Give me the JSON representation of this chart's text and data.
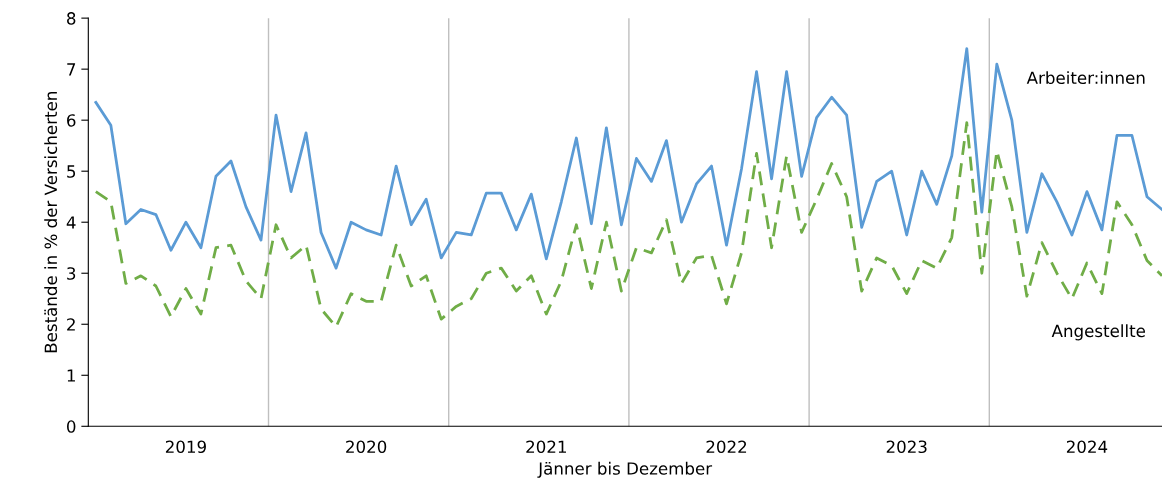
{
  "chart_data": {
    "type": "line",
    "xlabel": "Jänner bis Dezember",
    "ylabel": "Bestände in % der Versicherten",
    "categories": [
      null,
      null,
      null,
      null,
      null,
      null,
      "2019",
      null,
      null,
      null,
      null,
      null,
      null,
      null,
      null,
      null,
      null,
      null,
      "2020",
      null,
      null,
      null,
      null,
      null,
      null,
      null,
      null,
      null,
      null,
      null,
      "2021",
      null,
      null,
      null,
      null,
      null,
      null,
      null,
      null,
      null,
      null,
      null,
      "2022",
      null,
      null,
      null,
      null,
      null,
      null,
      null,
      null,
      null,
      null,
      null,
      "2023",
      null,
      null,
      null,
      null,
      null,
      null,
      null,
      null,
      null,
      null,
      null,
      "2024",
      null,
      null,
      null,
      null,
      null
    ],
    "ylim": [
      0,
      8
    ],
    "yticks": [
      0,
      1,
      2,
      3,
      4,
      5,
      6,
      7,
      8
    ],
    "grid": false,
    "legend": false,
    "series": [
      {
        "name": "Arbeiter:innen",
        "color": "#5b9bd5",
        "line_style": "solid",
        "values": [
          6.35,
          5.9,
          3.97,
          4.25,
          4.15,
          3.45,
          4.0,
          3.5,
          4.9,
          5.2,
          4.3,
          3.65,
          6.1,
          4.6,
          5.75,
          3.8,
          3.1,
          4.0,
          3.85,
          3.75,
          5.1,
          3.95,
          4.45,
          3.3,
          3.8,
          3.75,
          4.57,
          4.57,
          3.85,
          4.55,
          3.28,
          4.4,
          5.65,
          3.97,
          5.85,
          3.95,
          5.25,
          4.8,
          5.6,
          4.0,
          4.75,
          5.1,
          3.55,
          5.05,
          6.95,
          4.85,
          6.95,
          4.9,
          6.05,
          6.45,
          6.1,
          3.9,
          4.8,
          5.0,
          3.75,
          5.0,
          4.35,
          5.3,
          7.4,
          4.2,
          7.1,
          6.0,
          3.8,
          4.95,
          4.4,
          3.75,
          4.6,
          3.85,
          5.7,
          5.7,
          4.5,
          4.25
        ]
      },
      {
        "name": "Angestellte",
        "color": "#70ad47",
        "line_style": "dashed",
        "values": [
          4.6,
          4.4,
          2.8,
          2.95,
          2.75,
          2.15,
          2.7,
          2.2,
          3.5,
          3.55,
          2.85,
          2.5,
          3.95,
          3.3,
          3.55,
          2.3,
          1.95,
          2.6,
          2.45,
          2.45,
          3.55,
          2.75,
          2.95,
          2.1,
          2.35,
          2.5,
          3.0,
          3.1,
          2.65,
          2.95,
          2.2,
          2.85,
          3.95,
          2.7,
          4.0,
          2.65,
          3.5,
          3.4,
          4.05,
          2.8,
          3.3,
          3.35,
          2.4,
          3.4,
          5.35,
          3.5,
          5.3,
          3.8,
          4.45,
          5.15,
          4.5,
          2.65,
          3.3,
          3.15,
          2.6,
          3.25,
          3.1,
          3.7,
          5.95,
          3.0,
          5.4,
          4.3,
          2.55,
          3.6,
          3.0,
          2.5,
          3.2,
          2.6,
          4.4,
          3.95,
          3.25,
          2.95
        ]
      }
    ]
  }
}
